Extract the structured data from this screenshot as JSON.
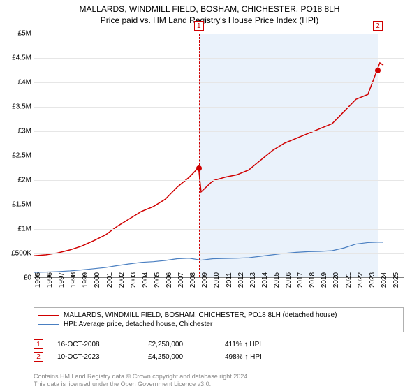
{
  "title_line1": "MALLARDS, WINDMILL FIELD, BOSHAM, CHICHESTER, PO18 8LH",
  "title_line2": "Price paid vs. HM Land Registry's House Price Index (HPI)",
  "chart": {
    "type": "line",
    "background_color": "#ffffff",
    "shaded_band_color": "#eaf2fb",
    "grid_color": "#e6e6e6",
    "axis_color": "#808080",
    "x_min": 1995,
    "x_max": 2026,
    "y_min": 0,
    "y_max": 5000000,
    "y_ticks": [
      0,
      500000,
      1000000,
      1500000,
      2000000,
      2500000,
      3000000,
      3500000,
      4000000,
      4500000,
      5000000
    ],
    "y_tick_labels": [
      "£0",
      "£500K",
      "£1M",
      "£1.5M",
      "£2M",
      "£2.5M",
      "£3M",
      "£3.5M",
      "£4M",
      "£4.5M",
      "£5M"
    ],
    "x_ticks": [
      1995,
      1996,
      1997,
      1998,
      1999,
      2000,
      2001,
      2002,
      2003,
      2004,
      2005,
      2006,
      2007,
      2008,
      2009,
      2010,
      2011,
      2012,
      2013,
      2014,
      2015,
      2016,
      2017,
      2018,
      2019,
      2020,
      2021,
      2022,
      2023,
      2024,
      2025
    ],
    "shaded_from_x": 2008.8,
    "shaded_to_x": 2023.8,
    "series": [
      {
        "name": "MALLARDS, WINDMILL FIELD, BOSHAM, CHICHESTER, PO18 8LH (detached house)",
        "color": "#d00000",
        "line_width": 1.5,
        "points": [
          [
            1995,
            440000
          ],
          [
            1996,
            460000
          ],
          [
            1997,
            500000
          ],
          [
            1998,
            560000
          ],
          [
            1999,
            640000
          ],
          [
            2000,
            750000
          ],
          [
            2001,
            870000
          ],
          [
            2002,
            1050000
          ],
          [
            2003,
            1200000
          ],
          [
            2004,
            1350000
          ],
          [
            2005,
            1450000
          ],
          [
            2006,
            1600000
          ],
          [
            2007,
            1850000
          ],
          [
            2008,
            2050000
          ],
          [
            2008.79,
            2250000
          ],
          [
            2009,
            1750000
          ],
          [
            2010,
            1980000
          ],
          [
            2011,
            2050000
          ],
          [
            2012,
            2100000
          ],
          [
            2013,
            2200000
          ],
          [
            2014,
            2400000
          ],
          [
            2015,
            2600000
          ],
          [
            2016,
            2750000
          ],
          [
            2017,
            2850000
          ],
          [
            2018,
            2950000
          ],
          [
            2019,
            3050000
          ],
          [
            2020,
            3150000
          ],
          [
            2021,
            3400000
          ],
          [
            2022,
            3650000
          ],
          [
            2023,
            3750000
          ],
          [
            2023.77,
            4250000
          ],
          [
            2024,
            4400000
          ],
          [
            2024.3,
            4350000
          ]
        ]
      },
      {
        "name": "HPI: Average price, detached house, Chichester",
        "color": "#4a7fc1",
        "line_width": 1.2,
        "points": [
          [
            1995,
            100000
          ],
          [
            1996,
            105000
          ],
          [
            1997,
            115000
          ],
          [
            1998,
            130000
          ],
          [
            1999,
            150000
          ],
          [
            2000,
            175000
          ],
          [
            2001,
            200000
          ],
          [
            2002,
            240000
          ],
          [
            2003,
            275000
          ],
          [
            2004,
            305000
          ],
          [
            2005,
            320000
          ],
          [
            2006,
            345000
          ],
          [
            2007,
            380000
          ],
          [
            2008,
            390000
          ],
          [
            2009,
            350000
          ],
          [
            2010,
            380000
          ],
          [
            2011,
            385000
          ],
          [
            2012,
            390000
          ],
          [
            2013,
            400000
          ],
          [
            2014,
            430000
          ],
          [
            2015,
            460000
          ],
          [
            2016,
            490000
          ],
          [
            2017,
            510000
          ],
          [
            2018,
            525000
          ],
          [
            2019,
            530000
          ],
          [
            2020,
            545000
          ],
          [
            2021,
            600000
          ],
          [
            2022,
            680000
          ],
          [
            2023,
            710000
          ],
          [
            2024,
            720000
          ],
          [
            2024.3,
            715000
          ]
        ]
      }
    ],
    "markers": [
      {
        "n": "1",
        "x": 2008.79,
        "y": 2250000,
        "date": "16-OCT-2008",
        "price": "£2,250,000",
        "pct": "411% ↑ HPI"
      },
      {
        "n": "2",
        "x": 2023.77,
        "y": 4250000,
        "date": "10-OCT-2023",
        "price": "£4,250,000",
        "pct": "498% ↑ HPI"
      }
    ],
    "marker_color": "#d00000"
  },
  "legend": {
    "border_color": "#b0b0b0"
  },
  "footer_line1": "Contains HM Land Registry data © Crown copyright and database right 2024.",
  "footer_line2": "This data is licensed under the Open Government Licence v3.0.",
  "footer_color": "#888888"
}
